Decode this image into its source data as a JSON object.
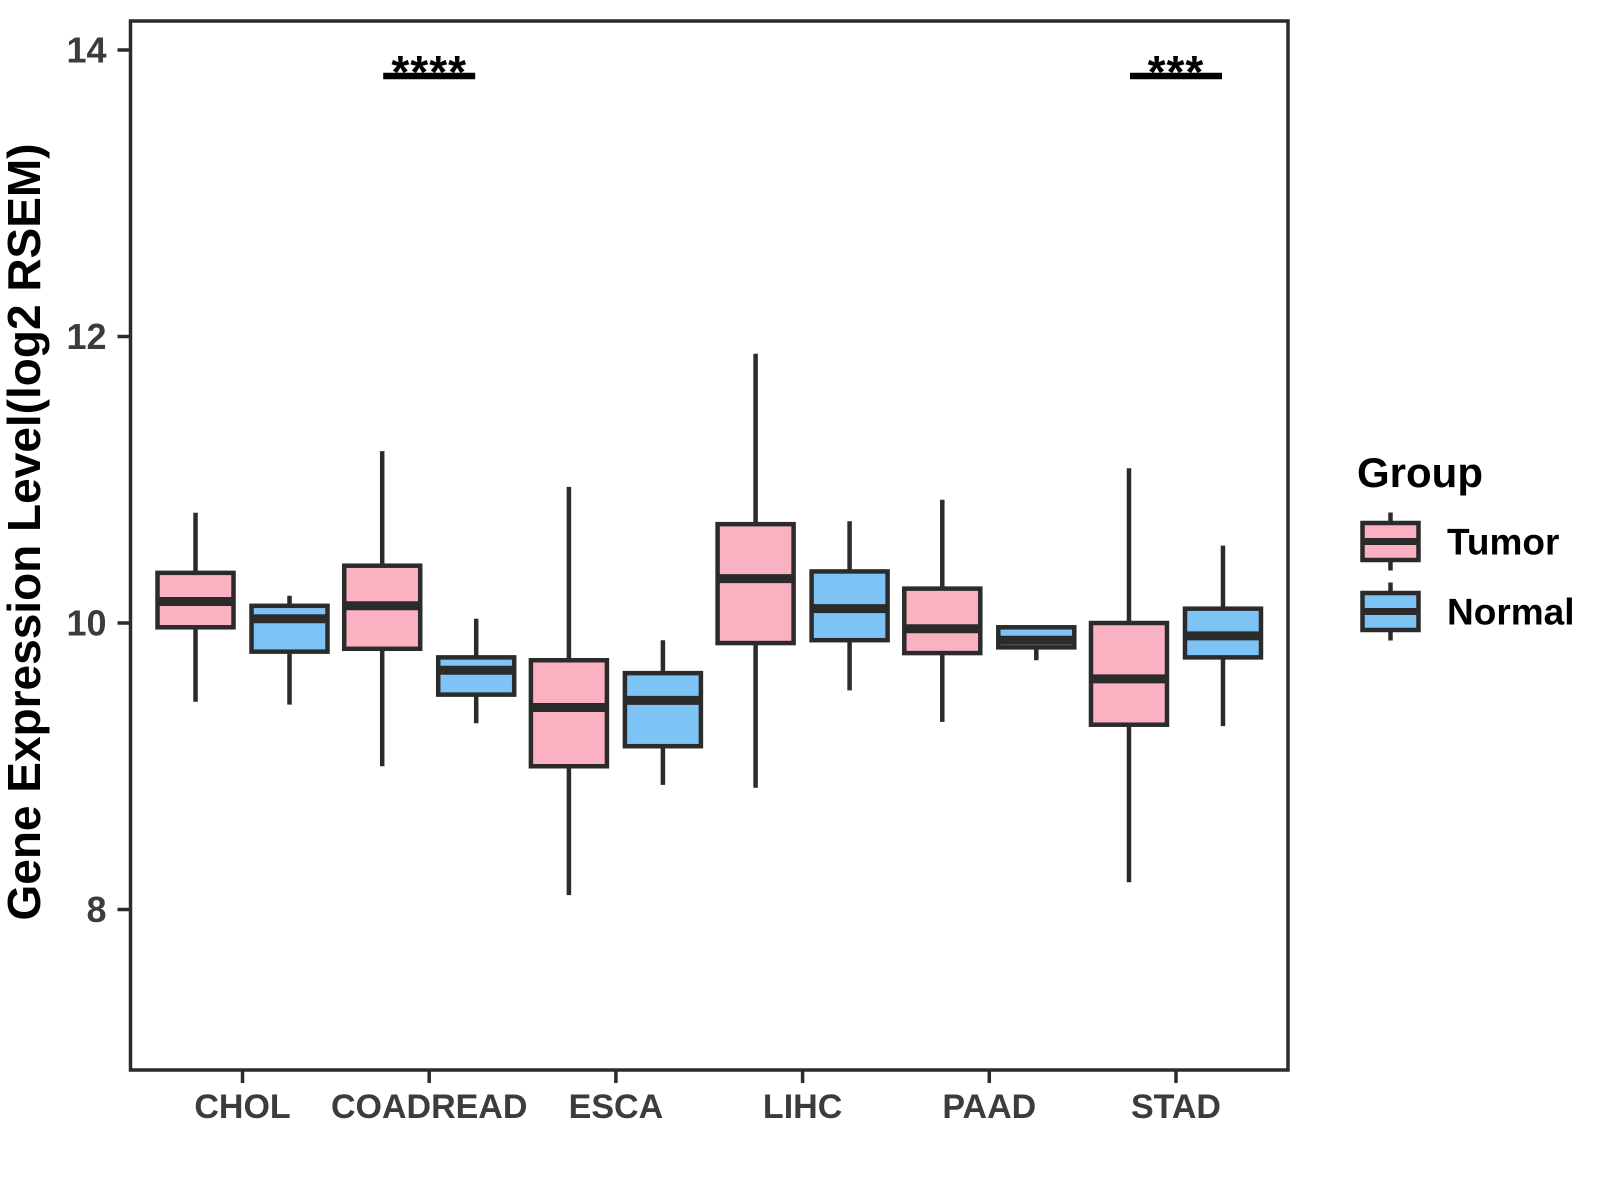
{
  "chart_data": {
    "type": "boxplot",
    "title": "",
    "xlabel": "",
    "ylabel": "Gene Expression Level(log2 RSEM)",
    "ylim": [
      6.9,
      14.2
    ],
    "yticks": [
      8,
      10,
      12,
      14
    ],
    "grid": false,
    "categories": [
      "CHOL",
      "COADREAD",
      "ESCA",
      "LIHC",
      "PAAD",
      "STAD"
    ],
    "legend": {
      "title": "Group",
      "position": "right",
      "items": [
        {
          "label": "Tumor",
          "color": "#FAB1C2"
        },
        {
          "label": "Normal",
          "color": "#7EC3F5"
        }
      ]
    },
    "series": [
      {
        "name": "Tumor",
        "color": "#FAB1C2",
        "boxes": [
          {
            "category": "CHOL",
            "min": 9.45,
            "q1": 9.97,
            "median": 10.15,
            "q3": 10.35,
            "max": 10.77
          },
          {
            "category": "COADREAD",
            "min": 9.0,
            "q1": 9.82,
            "median": 10.12,
            "q3": 10.4,
            "max": 11.2
          },
          {
            "category": "ESCA",
            "min": 8.1,
            "q1": 9.0,
            "median": 9.41,
            "q3": 9.74,
            "max": 10.95
          },
          {
            "category": "LIHC",
            "min": 8.85,
            "q1": 9.86,
            "median": 10.31,
            "q3": 10.69,
            "max": 11.88
          },
          {
            "category": "PAAD",
            "min": 9.31,
            "q1": 9.79,
            "median": 9.96,
            "q3": 10.24,
            "max": 10.86
          },
          {
            "category": "STAD",
            "min": 8.19,
            "q1": 9.29,
            "median": 9.61,
            "q3": 10.0,
            "max": 11.08
          }
        ]
      },
      {
        "name": "Normal",
        "color": "#7EC3F5",
        "boxes": [
          {
            "category": "CHOL",
            "min": 9.43,
            "q1": 9.8,
            "median": 10.03,
            "q3": 10.12,
            "max": 10.19
          },
          {
            "category": "COADREAD",
            "min": 9.3,
            "q1": 9.5,
            "median": 9.67,
            "q3": 9.76,
            "max": 10.03
          },
          {
            "category": "ESCA",
            "min": 8.87,
            "q1": 9.14,
            "median": 9.46,
            "q3": 9.65,
            "max": 9.88
          },
          {
            "category": "LIHC",
            "min": 9.53,
            "q1": 9.88,
            "median": 10.1,
            "q3": 10.36,
            "max": 10.71
          },
          {
            "category": "PAAD",
            "min": 9.74,
            "q1": 9.83,
            "median": 9.88,
            "q3": 9.97,
            "max": 9.98
          },
          {
            "category": "STAD",
            "min": 9.28,
            "q1": 9.76,
            "median": 9.91,
            "q3": 10.1,
            "max": 10.54
          }
        ]
      }
    ],
    "annotations": [
      {
        "category": "COADREAD",
        "label": "****"
      },
      {
        "category": "STAD",
        "label": "***"
      }
    ],
    "styles": {
      "box_border": "#2B2B2B",
      "axis_text": "#3C3C3C",
      "title_text": "#000000",
      "background": "#FFFFFF"
    }
  }
}
